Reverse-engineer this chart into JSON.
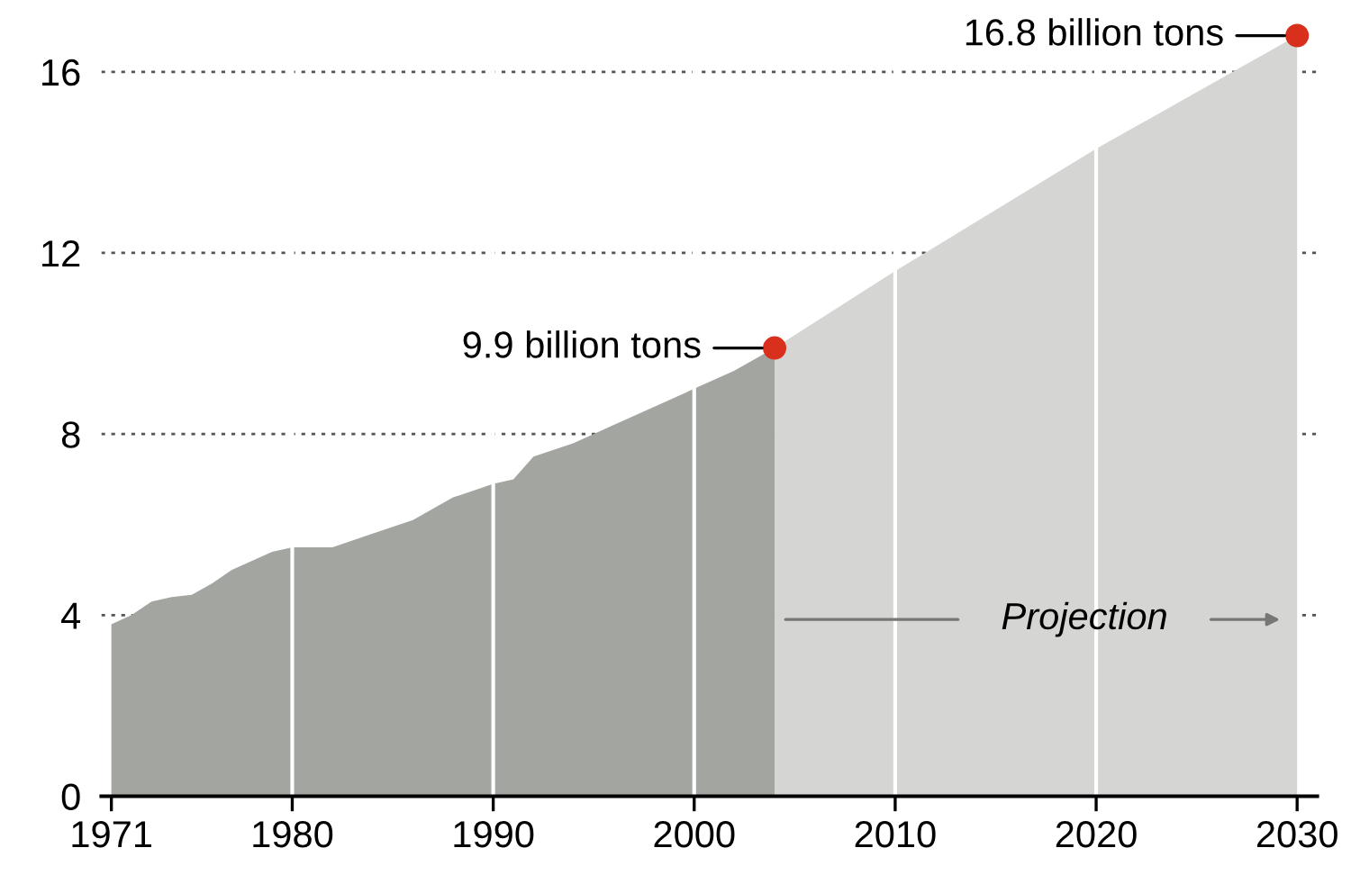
{
  "chart_data": {
    "type": "area",
    "series": [
      {
        "color": "#a3a5a1",
        "x": [
          1971,
          1972,
          1973,
          1974,
          1975,
          1976,
          1977,
          1978,
          1979,
          1980,
          1982,
          1984,
          1986,
          1988,
          1990,
          1991,
          1992,
          1994,
          1996,
          1998,
          2000,
          2002,
          2004
        ],
        "values": [
          3.8,
          4.0,
          4.3,
          4.4,
          4.45,
          4.7,
          5.0,
          5.2,
          5.4,
          5.5,
          5.5,
          5.8,
          6.1,
          6.6,
          6.9,
          7.0,
          7.5,
          7.8,
          8.2,
          8.6,
          9.0,
          9.4,
          9.9
        ]
      },
      {
        "color": "#d5d6d3",
        "x": [
          2004,
          2010,
          2020,
          2030
        ],
        "values": [
          9.9,
          11.6,
          14.3,
          16.8
        ]
      },
      {
        "type": "scatter",
        "marker": "circle",
        "color": "#d9301e",
        "x": [
          2004,
          2030
        ],
        "values": [
          9.9,
          16.8
        ]
      }
    ],
    "annotations": [
      {
        "text": "9.9 billion tons",
        "x": 2004,
        "y": 9.9
      },
      {
        "text": "16.8 billion tons",
        "x": 2030,
        "y": 16.8
      },
      "Projection"
    ],
    "xlim": [
      1970.5,
      2031
    ],
    "xticks": [
      1971,
      1980,
      1990,
      2000,
      2010,
      2020,
      2030
    ],
    "ylim": [
      0,
      17.2
    ],
    "yticks": [
      0,
      4,
      8,
      12,
      16
    ],
    "grid": true
  }
}
